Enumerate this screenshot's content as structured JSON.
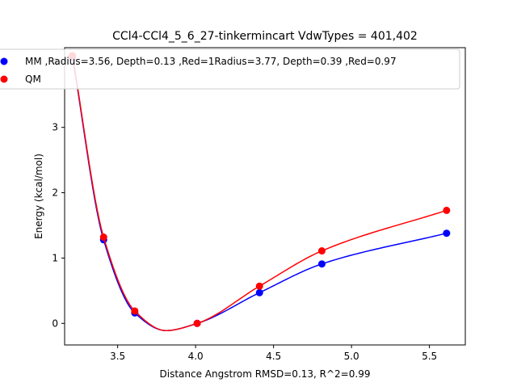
{
  "chart_data": {
    "type": "line",
    "title": "CCl4-CCl4_5_6_27-tinkermincart VdwTypes = 401,402",
    "xlabel": "Distance Angstrom RMSD=0.13, R^2=0.99",
    "ylabel": "Energy (kcal/mol)",
    "xlim": [
      3.16,
      5.73
    ],
    "ylim": [
      -0.33,
      4.22
    ],
    "xticks": [
      "3.5",
      "4.0",
      "4.5",
      "5.0",
      "5.5"
    ],
    "yticks": [
      "0",
      "1",
      "2",
      "3",
      "4"
    ],
    "legend_position": "top-left",
    "grid": false,
    "series": [
      {
        "name": "MM ,Radius=3.56, Depth=0.13 ,Red=1Radius=3.77, Depth=0.39 ,Red=0.97",
        "color": "#0000ff",
        "x": [
          3.21,
          3.41,
          3.61,
          4.01,
          4.41,
          4.81,
          5.61
        ],
        "y": [
          4.08,
          1.28,
          0.16,
          0.0,
          0.47,
          0.91,
          1.38
        ]
      },
      {
        "name": "QM",
        "color": "#ff0000",
        "x": [
          3.21,
          3.41,
          3.61,
          4.01,
          4.41,
          4.81,
          5.61
        ],
        "y": [
          4.1,
          1.32,
          0.19,
          0.0,
          0.57,
          1.11,
          1.73
        ]
      }
    ]
  }
}
